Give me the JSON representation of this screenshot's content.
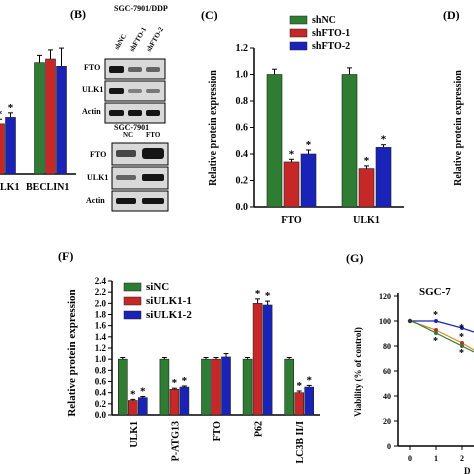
{
  "panels": {
    "B": {
      "letter": "(B)",
      "title_top": "SGC-7901/DDP",
      "lanes_top": [
        "shNC",
        "shFTO-1",
        "shFTO-2"
      ],
      "rows_top": [
        "FTO",
        "ULK1",
        "Actin"
      ],
      "title_bottom": "SGC-7901",
      "lanes_bottom": [
        "NC",
        "FTO"
      ],
      "rows_bottom": [
        "FTO",
        "ULK1",
        "Actin"
      ]
    },
    "C": {
      "letter": "(C)"
    },
    "D": {
      "letter": "(D)",
      "ylabel": "Relative protein expression"
    },
    "F": {
      "letter": "(F)"
    },
    "G": {
      "letter": "(G)",
      "title": "SGC-7",
      "ylabel": "Viability (% of control)",
      "xlabel": "D",
      "yticks": [
        "0",
        "20",
        "40",
        "60",
        "80",
        "100",
        "120"
      ],
      "xticks": [
        "0",
        "1",
        "2"
      ]
    },
    "A": {
      "xticks": [
        "LK1",
        "BECLIN1"
      ]
    }
  },
  "colors": {
    "green": "#2e7d32",
    "red": "#c62828",
    "blue": "#1a23b8"
  },
  "chart_data": [
    {
      "panel": "C",
      "type": "bar",
      "categories": [
        "FTO",
        "ULK1"
      ],
      "series": [
        {
          "name": "shNC",
          "values": [
            1.0,
            1.0
          ],
          "errors": [
            0.04,
            0.05
          ],
          "sig": [
            "",
            ""
          ]
        },
        {
          "name": "shFTO-1",
          "values": [
            0.34,
            0.29
          ],
          "errors": [
            0.02,
            0.02
          ],
          "sig": [
            "*",
            "*"
          ]
        },
        {
          "name": "shFTO-2",
          "values": [
            0.4,
            0.45
          ],
          "errors": [
            0.03,
            0.02
          ],
          "sig": [
            "*",
            "*"
          ]
        }
      ],
      "ylabel": "Relative protein expression",
      "ylim": [
        0,
        1.2
      ],
      "yticks": [
        "0.0",
        "0.2",
        "0.4",
        "0.6",
        "0.8",
        "1.0",
        "1.2"
      ],
      "legend": "top-right"
    },
    {
      "panel": "F",
      "type": "bar",
      "categories": [
        "ULK1",
        "P-ATG13",
        "FTO",
        "P62",
        "LC3B II/I"
      ],
      "series": [
        {
          "name": "siNC",
          "values": [
            1.0,
            1.0,
            1.0,
            1.0,
            1.0
          ],
          "errors": [
            0.03,
            0.03,
            0.03,
            0.03,
            0.03
          ],
          "sig": [
            "",
            "",
            "",
            "",
            ""
          ]
        },
        {
          "name": "siULK1-1",
          "values": [
            0.26,
            0.46,
            1.0,
            2.0,
            0.4
          ],
          "errors": [
            0.02,
            0.02,
            0.03,
            0.08,
            0.03
          ],
          "sig": [
            "*",
            "*",
            "",
            "*",
            "*"
          ]
        },
        {
          "name": "siULK1-2",
          "values": [
            0.31,
            0.5,
            1.04,
            1.97,
            0.5
          ],
          "errors": [
            0.02,
            0.02,
            0.06,
            0.07,
            0.03
          ],
          "sig": [
            "*",
            "*",
            "",
            "*",
            "*"
          ]
        }
      ],
      "ylabel": "Relative protein expression",
      "ylim": [
        0,
        2.4
      ],
      "yticks": [
        "0.0",
        "0.2",
        "0.4",
        "0.6",
        "0.8",
        "1.0",
        "1.2",
        "1.4",
        "1.6",
        "1.8",
        "2.0",
        "2.2",
        "2.4"
      ],
      "legend": "top-left"
    },
    {
      "panel": "A",
      "type": "bar",
      "categories": [
        "LK1",
        "BECLIN1"
      ],
      "series": [
        {
          "values": [
            0.55,
            1.22
          ],
          "errors": [
            0.08,
            0.08
          ],
          "sig": [
            "",
            ""
          ]
        },
        {
          "values": [
            0.55,
            1.26
          ],
          "errors": [
            0.05,
            0.1
          ],
          "sig": [
            "*",
            ""
          ]
        },
        {
          "values": [
            0.62,
            1.18
          ],
          "errors": [
            0.05,
            0.2
          ],
          "sig": [
            "*",
            ""
          ]
        }
      ],
      "ylim": [
        0,
        1.6
      ]
    }
  ]
}
